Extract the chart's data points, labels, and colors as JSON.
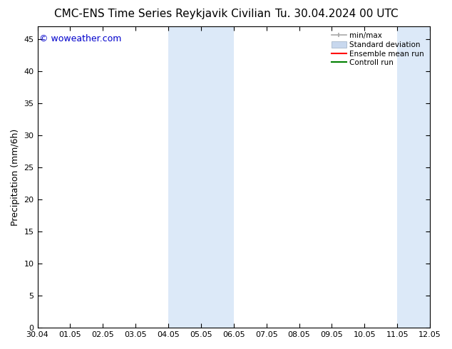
{
  "title_left": "CMC-ENS Time Series Reykjavik Civilian",
  "title_right": "Tu. 30.04.2024 00 UTC",
  "ylabel": "Precipitation (mm/6h)",
  "ylim": [
    0,
    47
  ],
  "yticks": [
    0,
    5,
    10,
    15,
    20,
    25,
    30,
    35,
    40,
    45
  ],
  "xtick_labels": [
    "30.04",
    "01.05",
    "02.05",
    "03.05",
    "04.05",
    "05.05",
    "06.05",
    "07.05",
    "08.05",
    "09.05",
    "10.05",
    "11.05",
    "12.05"
  ],
  "xtick_positions": [
    0,
    1,
    2,
    3,
    4,
    5,
    6,
    7,
    8,
    9,
    10,
    11,
    12
  ],
  "shaded_regions": [
    {
      "x_start": 4,
      "x_end": 6,
      "color": "#dce9f8"
    },
    {
      "x_start": 11,
      "x_end": 12,
      "color": "#dce9f8"
    }
  ],
  "minmax_color": "#a8a8a8",
  "stddev_color": "#c8d8ee",
  "stddev_edge": "#a8b8cc",
  "ensemble_mean_color": "#ff0000",
  "control_run_color": "#008000",
  "watermark_text": "© woweather.com",
  "watermark_color": "#0000cc",
  "watermark_fontsize": 9,
  "legend_entries": [
    "min/max",
    "Standard deviation",
    "Ensemble mean run",
    "Controll run"
  ],
  "bg_color": "#ffffff",
  "title_fontsize": 11,
  "tick_fontsize": 8,
  "ylabel_fontsize": 9,
  "legend_fontsize": 7.5
}
